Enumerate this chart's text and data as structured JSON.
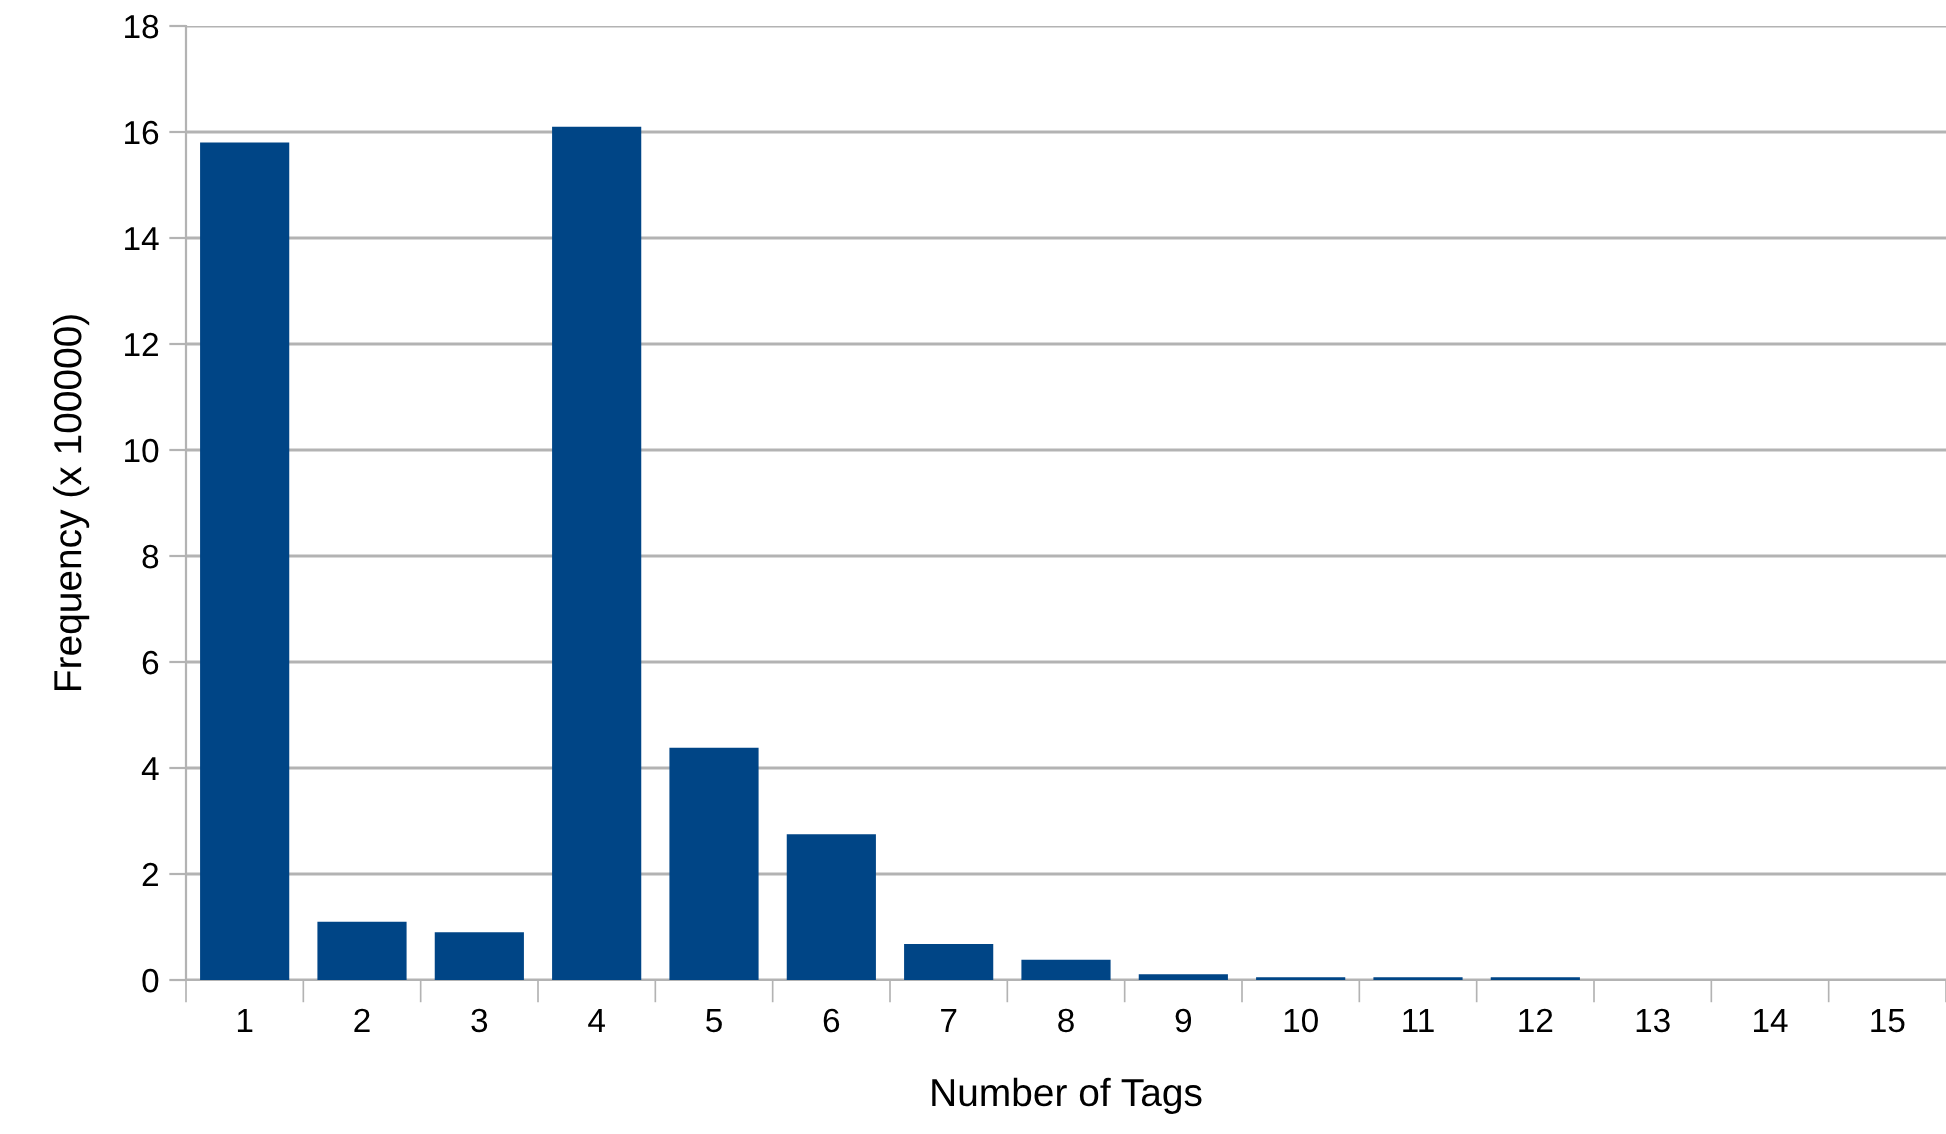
{
  "chart_data": {
    "type": "bar",
    "xlabel": "Number of Tags",
    "ylabel": "Frequency (x 100000)",
    "categories": [
      "1",
      "2",
      "3",
      "4",
      "5",
      "6",
      "7",
      "8",
      "9",
      "10",
      "11",
      "12",
      "13",
      "14",
      "15"
    ],
    "values": [
      15.8,
      1.1,
      0.9,
      16.1,
      4.38,
      2.75,
      0.68,
      0.38,
      0.11,
      0.05,
      0.05,
      0.05,
      0,
      0,
      0
    ],
    "color": "#004586",
    "ylim": [
      0,
      18
    ],
    "yticks": [
      0,
      2,
      4,
      6,
      8,
      10,
      12,
      14,
      16,
      18
    ],
    "grid": "y",
    "legend": false
  }
}
